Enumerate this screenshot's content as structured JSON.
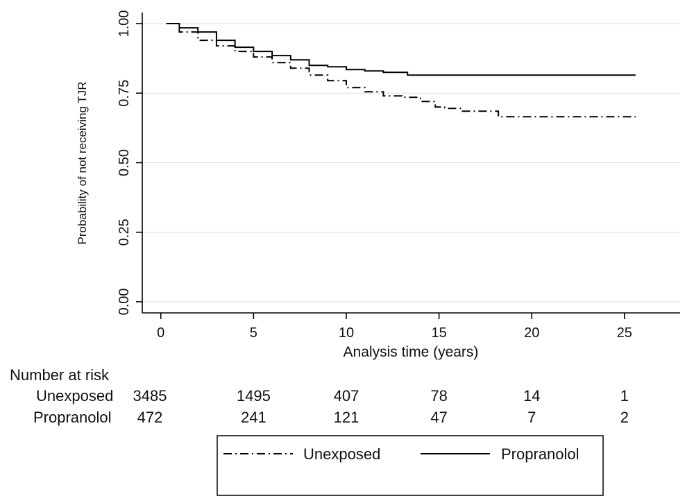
{
  "chart_data": {
    "type": "line",
    "xlabel": "Analysis time (years)",
    "ylabel": "Probability of not receiving TJR",
    "xlim": [
      -1,
      28
    ],
    "ylim": [
      -0.04,
      1.04
    ],
    "xticks": [
      0,
      5,
      10,
      15,
      20,
      25
    ],
    "xtick_labels": [
      "0",
      "5",
      "10",
      "15",
      "20",
      "25"
    ],
    "yticks": [
      0,
      0.25,
      0.5,
      0.75,
      1
    ],
    "ytick_labels": [
      "0.00",
      "0.25",
      "0.50",
      "0.75",
      "1.00"
    ],
    "grid": "horizontal",
    "series": [
      {
        "name": "Unexposed",
        "style": "dash-dot",
        "color": "#000000",
        "x": [
          0.3,
          1,
          2,
          3,
          4,
          5,
          6,
          7,
          8,
          9,
          10,
          11,
          12,
          13,
          14,
          14.8,
          15.3,
          16.2,
          17.9,
          18.2,
          20,
          22,
          24,
          25.6
        ],
        "y": [
          1.0,
          0.97,
          0.94,
          0.92,
          0.9,
          0.88,
          0.86,
          0.84,
          0.815,
          0.795,
          0.77,
          0.755,
          0.74,
          0.735,
          0.72,
          0.7,
          0.695,
          0.685,
          0.685,
          0.665,
          0.665,
          0.665,
          0.665,
          0.665
        ]
      },
      {
        "name": "Propranolol",
        "style": "solid",
        "color": "#000000",
        "x": [
          0.3,
          1,
          2,
          3,
          4,
          5,
          6,
          7,
          8,
          9,
          10,
          11,
          12,
          13,
          13.3,
          15,
          20,
          25.6
        ],
        "y": [
          1.0,
          0.985,
          0.97,
          0.94,
          0.915,
          0.9,
          0.885,
          0.87,
          0.85,
          0.845,
          0.835,
          0.83,
          0.825,
          0.825,
          0.815,
          0.815,
          0.815,
          0.815
        ]
      }
    ],
    "risk_table": {
      "title": "Number at risk",
      "rows": [
        {
          "label": "Unexposed",
          "values": [
            "3485",
            "1495",
            "407",
            "78",
            "14",
            "1"
          ]
        },
        {
          "label": "Propranolol",
          "values": [
            "472",
            "241",
            "121",
            "47",
            "7",
            "2"
          ]
        }
      ]
    },
    "legend": {
      "placement": "bottom",
      "entries": [
        "Unexposed",
        "Propranolol"
      ]
    }
  }
}
